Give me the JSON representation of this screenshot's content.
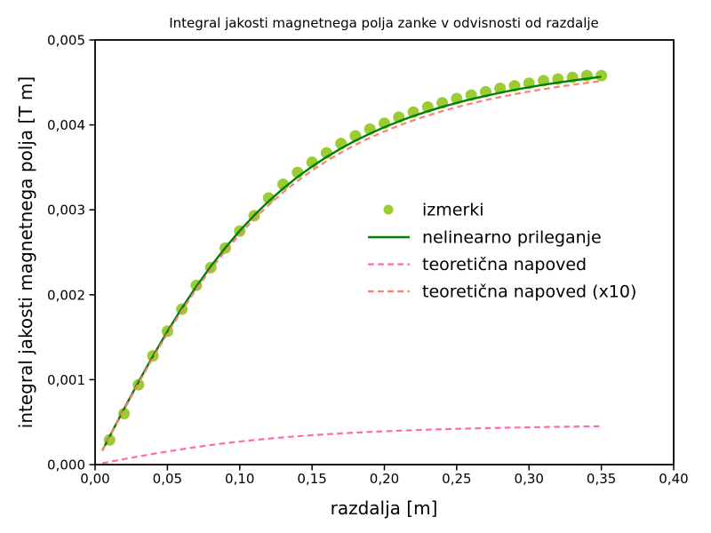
{
  "chart_data": {
    "type": "scatter",
    "title": "Integral jakosti magnetnega polja zanke v odvisnosti od razdalje",
    "xlabel": "razdalja [m]",
    "ylabel": "integral jakosti magnetnega polja [T m]",
    "xlim": [
      0.0,
      0.4
    ],
    "ylim": [
      0.0,
      0.005
    ],
    "grid": false,
    "legend_position": "center right",
    "legend_frame": false,
    "decimal_separator": ",",
    "x_ticks": {
      "values": [
        0.0,
        0.05,
        0.1,
        0.15,
        0.2,
        0.25,
        0.3,
        0.35,
        0.4
      ],
      "labels": [
        "0,00",
        "0,05",
        "0,10",
        "0,15",
        "0,20",
        "0,25",
        "0,30",
        "0,35",
        "0,40"
      ]
    },
    "y_ticks": {
      "values": [
        0.0,
        0.001,
        0.002,
        0.003,
        0.004,
        0.005
      ],
      "labels": [
        "0,000",
        "0,001",
        "0,002",
        "0,003",
        "0,004",
        "0,005"
      ]
    },
    "measurements": {
      "name": "izmerki",
      "color": "#9acd32",
      "marker": "circle",
      "marker_radius": 6.5,
      "x": [
        0.01,
        0.02,
        0.03,
        0.04,
        0.05,
        0.06,
        0.07,
        0.08,
        0.09,
        0.1,
        0.11,
        0.12,
        0.13,
        0.14,
        0.15,
        0.16,
        0.17,
        0.18,
        0.19,
        0.2,
        0.21,
        0.22,
        0.23,
        0.24,
        0.25,
        0.26,
        0.27,
        0.28,
        0.29,
        0.3,
        0.31,
        0.32,
        0.33,
        0.34,
        0.35
      ],
      "y": [
        0.00029,
        0.0006,
        0.00094,
        0.00128,
        0.00157,
        0.00183,
        0.00211,
        0.00232,
        0.00255,
        0.00275,
        0.00293,
        0.00314,
        0.0033,
        0.00344,
        0.00356,
        0.00367,
        0.00378,
        0.00387,
        0.00395,
        0.00402,
        0.00409,
        0.00415,
        0.00421,
        0.00426,
        0.00431,
        0.00435,
        0.00439,
        0.00443,
        0.00446,
        0.00449,
        0.00452,
        0.00454,
        0.00456,
        0.00458,
        0.00458
      ]
    },
    "series": [
      {
        "name": "nelinearno prileganje",
        "color": "#008000",
        "style": "solid",
        "x": [
          0.005,
          0.01,
          0.02,
          0.03,
          0.04,
          0.05,
          0.06,
          0.07,
          0.08,
          0.09,
          0.1,
          0.11,
          0.12,
          0.13,
          0.14,
          0.15,
          0.16,
          0.17,
          0.18,
          0.19,
          0.2,
          0.21,
          0.22,
          0.23,
          0.24,
          0.25,
          0.26,
          0.27,
          0.28,
          0.29,
          0.3,
          0.31,
          0.32,
          0.33,
          0.34,
          0.35
        ],
        "y": [
          0.000165,
          0.00033,
          0.000655,
          0.000973,
          0.001278,
          0.001569,
          0.001842,
          0.002098,
          0.002335,
          0.002553,
          0.002753,
          0.002935,
          0.003101,
          0.003251,
          0.003387,
          0.00351,
          0.003622,
          0.003723,
          0.003815,
          0.003897,
          0.003973,
          0.004041,
          0.004104,
          0.00416,
          0.004212,
          0.004259,
          0.004303,
          0.004342,
          0.004379,
          0.004413,
          0.004444,
          0.004472,
          0.004498,
          0.004522,
          0.004545,
          0.004566
        ]
      },
      {
        "name": "teoretična napoved",
        "color": "#ff69b4",
        "style": "dashed",
        "x": [
          0.005,
          0.01,
          0.02,
          0.03,
          0.04,
          0.05,
          0.06,
          0.07,
          0.08,
          0.09,
          0.1,
          0.11,
          0.12,
          0.13,
          0.14,
          0.15,
          0.16,
          0.17,
          0.18,
          0.19,
          0.2,
          0.21,
          0.22,
          0.23,
          0.24,
          0.25,
          0.26,
          0.27,
          0.28,
          0.29,
          0.3,
          0.31,
          0.32,
          0.33,
          0.34,
          0.35
        ],
        "y": [
          1.63e-05,
          3.24e-05,
          6.45e-05,
          9.57e-05,
          0.0001257,
          0.0001544,
          0.0001813,
          0.0002066,
          0.0002299,
          0.0002515,
          0.0002712,
          0.0002893,
          0.0003057,
          0.0003206,
          0.0003341,
          0.0003464,
          0.0003574,
          0.0003675,
          0.0003766,
          0.0003849,
          0.0003923,
          0.0003992,
          0.0004054,
          0.000411,
          0.0004162,
          0.0004209,
          0.0004252,
          0.0004292,
          0.0004328,
          0.0004362,
          0.0004393,
          0.0004421,
          0.0004448,
          0.0004472,
          0.0004495,
          0.0004516
        ]
      },
      {
        "name": "teoretična napoved (x10)",
        "color": "#fa8072",
        "style": "dashed",
        "x": [
          0.005,
          0.01,
          0.02,
          0.03,
          0.04,
          0.05,
          0.06,
          0.07,
          0.08,
          0.09,
          0.1,
          0.11,
          0.12,
          0.13,
          0.14,
          0.15,
          0.16,
          0.17,
          0.18,
          0.19,
          0.2,
          0.21,
          0.22,
          0.23,
          0.24,
          0.25,
          0.26,
          0.27,
          0.28,
          0.29,
          0.3,
          0.31,
          0.32,
          0.33,
          0.34,
          0.35
        ],
        "y": [
          0.000163,
          0.000324,
          0.000645,
          0.000957,
          0.001257,
          0.001544,
          0.001813,
          0.002066,
          0.002299,
          0.002515,
          0.002712,
          0.002893,
          0.003057,
          0.003206,
          0.003341,
          0.003464,
          0.003574,
          0.003675,
          0.003766,
          0.003849,
          0.003923,
          0.003992,
          0.004054,
          0.00411,
          0.004162,
          0.004209,
          0.004252,
          0.004292,
          0.004328,
          0.004362,
          0.004393,
          0.004421,
          0.004448,
          0.004472,
          0.004495,
          0.004516
        ]
      }
    ],
    "axis_color": "#000000"
  }
}
